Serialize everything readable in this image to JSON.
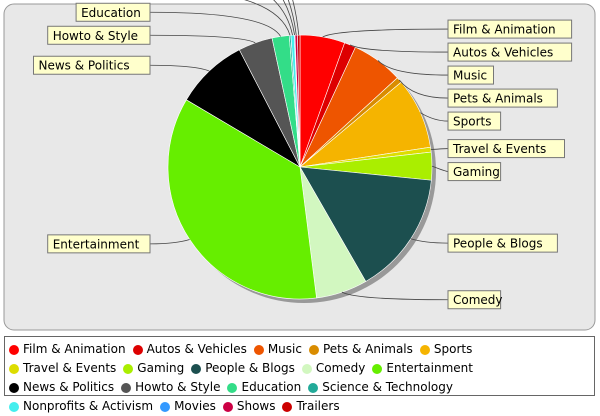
{
  "chart_data": {
    "type": "pie",
    "title": "",
    "slices": [
      {
        "label": "Film & Animation",
        "value": 5.5,
        "color": "#ff0000"
      },
      {
        "label": "Autos & Vehicles",
        "value": 1.4,
        "color": "#dd0000"
      },
      {
        "label": "Music",
        "value": 6.3,
        "color": "#ee5500"
      },
      {
        "label": "Pets & Animals",
        "value": 0.7,
        "color": "#d98c00"
      },
      {
        "label": "Sports",
        "value": 8.7,
        "color": "#f5b400"
      },
      {
        "label": "Travel & Events",
        "value": 0.6,
        "color": "#dddd00"
      },
      {
        "label": "Gaming",
        "value": 3.4,
        "color": "#aaee00"
      },
      {
        "label": "People & Blogs",
        "value": 15.1,
        "color": "#1c4f4f"
      },
      {
        "label": "Comedy",
        "value": 6.3,
        "color": "#d2f7c0"
      },
      {
        "label": "Entertainment",
        "value": 35.5,
        "color": "#66ee00"
      },
      {
        "label": "News & Politics",
        "value": 8.9,
        "color": "#000000"
      },
      {
        "label": "Howto & Style",
        "value": 4.2,
        "color": "#555555"
      },
      {
        "label": "Education",
        "value": 2.1,
        "color": "#33dd88"
      },
      {
        "label": "Science & Technology",
        "value": 0.2,
        "color": "#22aa99"
      },
      {
        "label": "Nonprofits & Activism",
        "value": 0.4,
        "color": "#44eeee"
      },
      {
        "label": "Movies",
        "value": 0.1,
        "color": "#3399ff"
      },
      {
        "label": "Shows",
        "value": 0.3,
        "color": "#cc0044"
      },
      {
        "label": "Trailers",
        "value": 0.3,
        "color": "#cc0000"
      }
    ]
  }
}
